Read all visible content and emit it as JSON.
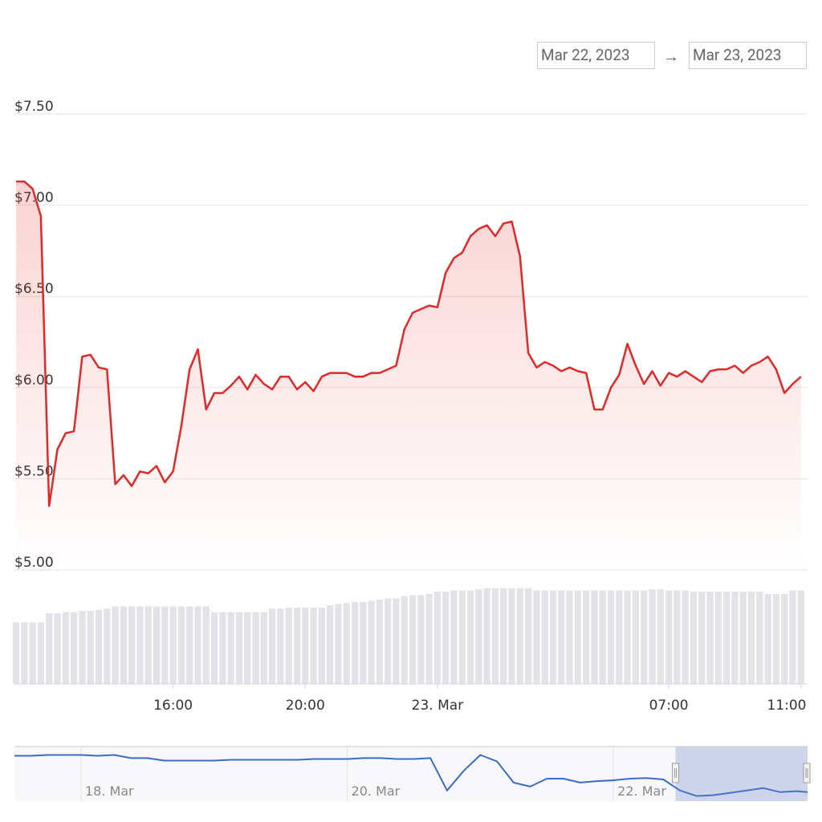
{
  "date_range": {
    "from": "Mar 22, 2023",
    "arrow": "→",
    "to": "Mar 23, 2023"
  },
  "chart_data": [
    {
      "type": "line",
      "x": [
        "2023-03-22T11:15",
        "2023-03-22T11:30",
        "2023-03-22T11:45",
        "2023-03-22T12:00",
        "2023-03-22T12:15",
        "2023-03-22T12:30",
        "2023-03-22T12:45",
        "2023-03-22T13:00",
        "2023-03-22T13:15",
        "2023-03-22T13:30",
        "2023-03-22T13:45",
        "2023-03-22T14:00",
        "2023-03-22T14:15",
        "2023-03-22T14:30",
        "2023-03-22T14:45",
        "2023-03-22T15:00",
        "2023-03-22T15:15",
        "2023-03-22T15:30",
        "2023-03-22T15:45",
        "2023-03-22T16:00",
        "2023-03-22T16:15",
        "2023-03-22T16:30",
        "2023-03-22T16:45",
        "2023-03-22T17:00",
        "2023-03-22T17:15",
        "2023-03-22T17:30",
        "2023-03-22T17:45",
        "2023-03-22T18:00",
        "2023-03-22T18:15",
        "2023-03-22T18:30",
        "2023-03-22T18:45",
        "2023-03-22T19:00",
        "2023-03-22T19:15",
        "2023-03-22T19:30",
        "2023-03-22T19:45",
        "2023-03-22T20:00",
        "2023-03-22T20:15",
        "2023-03-22T20:30",
        "2023-03-22T20:45",
        "2023-03-22T21:00",
        "2023-03-22T21:15",
        "2023-03-22T21:30",
        "2023-03-22T21:45",
        "2023-03-22T22:00",
        "2023-03-22T22:15",
        "2023-03-22T22:30",
        "2023-03-22T22:45",
        "2023-03-22T23:00",
        "2023-03-22T23:15",
        "2023-03-22T23:30",
        "2023-03-22T23:45",
        "2023-03-23T00:00",
        "2023-03-23T00:15",
        "2023-03-23T00:30",
        "2023-03-23T00:45",
        "2023-03-23T01:00",
        "2023-03-23T01:15",
        "2023-03-23T01:30",
        "2023-03-23T01:45",
        "2023-03-23T02:00",
        "2023-03-23T02:15",
        "2023-03-23T02:30",
        "2023-03-23T02:45",
        "2023-03-23T03:00",
        "2023-03-23T03:15",
        "2023-03-23T03:30",
        "2023-03-23T03:45",
        "2023-03-23T04:00",
        "2023-03-23T04:15",
        "2023-03-23T04:30",
        "2023-03-23T04:45",
        "2023-03-23T05:00",
        "2023-03-23T05:15",
        "2023-03-23T05:30",
        "2023-03-23T05:45",
        "2023-03-23T06:00",
        "2023-03-23T06:15",
        "2023-03-23T06:30",
        "2023-03-23T06:45",
        "2023-03-23T07:00",
        "2023-03-23T07:15",
        "2023-03-23T07:30",
        "2023-03-23T07:45",
        "2023-03-23T08:00",
        "2023-03-23T08:15",
        "2023-03-23T08:30",
        "2023-03-23T08:45",
        "2023-03-23T09:00",
        "2023-03-23T09:15",
        "2023-03-23T09:30",
        "2023-03-23T09:45",
        "2023-03-23T10:00",
        "2023-03-23T10:15",
        "2023-03-23T10:30",
        "2023-03-23T10:45",
        "2023-03-23T11:00"
      ],
      "series": [
        {
          "color": "#e02a2a",
          "values": [
            7.13,
            7.13,
            7.09,
            6.94,
            5.35,
            5.66,
            5.75,
            5.76,
            6.17,
            6.18,
            6.11,
            6.1,
            5.47,
            5.52,
            5.46,
            5.54,
            5.53,
            5.57,
            5.48,
            5.54,
            5.79,
            6.1,
            6.21,
            5.88,
            5.97,
            5.97,
            6.01,
            6.06,
            5.99,
            6.07,
            6.02,
            5.99,
            6.06,
            6.06,
            5.99,
            6.03,
            5.98,
            6.06,
            6.08,
            6.08,
            6.08,
            6.06,
            6.06,
            6.08,
            6.08,
            6.1,
            6.12,
            6.32,
            6.41,
            6.43,
            6.45,
            6.44,
            6.63,
            6.71,
            6.74,
            6.83,
            6.87,
            6.89,
            6.83,
            6.9,
            6.91,
            6.72,
            6.19,
            6.11,
            6.14,
            6.12,
            6.09,
            6.11,
            6.09,
            6.08,
            5.88,
            5.88,
            6.0,
            6.07,
            6.24,
            6.12,
            6.02,
            6.09,
            6.01,
            6.08,
            6.06,
            6.09,
            6.06,
            6.03,
            6.09,
            6.1,
            6.1,
            6.12,
            6.08,
            6.12,
            6.14,
            6.17,
            6.1,
            5.97,
            6.02,
            6.06
          ]
        },
        {
          "type": "bar",
          "axis": "y2",
          "color": "#e2e2e8",
          "values": [
            54,
            54,
            54,
            54,
            62,
            62,
            63,
            63,
            64,
            64,
            65,
            66,
            68,
            68,
            68,
            68,
            68,
            68,
            68,
            68,
            68,
            68,
            68,
            68,
            63,
            63,
            63,
            63,
            63,
            63,
            63,
            66,
            66,
            67,
            67,
            67,
            67,
            67,
            69,
            70,
            71,
            72,
            72,
            73,
            74,
            75,
            75,
            77,
            78,
            78,
            79,
            81,
            81,
            82,
            82,
            82,
            83,
            84,
            84,
            84,
            84,
            84,
            84,
            82,
            82,
            82,
            82,
            82,
            82,
            82,
            82,
            82,
            82,
            82,
            82,
            82,
            82,
            83,
            83,
            82,
            82,
            82,
            81,
            81,
            81,
            81,
            81,
            81,
            81,
            81,
            81,
            79,
            79,
            79,
            82,
            82
          ]
        }
      ],
      "xlim": [
        "2023-03-22T11:12",
        "2023-03-23T11:12"
      ],
      "xticks": [
        {
          "value": "2023-03-22T16:00",
          "label": "16:00"
        },
        {
          "value": "2023-03-22T20:00",
          "label": "20:00"
        },
        {
          "value": "2023-03-23T00:00",
          "label": "23. Mar"
        },
        {
          "value": "2023-03-23T07:00",
          "label": "07:00"
        },
        {
          "value": "2023-03-23T11:00",
          "label": "11:00"
        }
      ],
      "ylim": [
        5,
        7.5
      ],
      "yticks": [
        {
          "value": 5,
          "label": "$5.00"
        },
        {
          "value": 5.5,
          "label": "$5.50"
        },
        {
          "value": 6,
          "label": "$6.00"
        },
        {
          "value": 6.5,
          "label": "$6.50"
        },
        {
          "value": 7,
          "label": "$7.00"
        },
        {
          "value": 7.5,
          "label": "$7.50"
        }
      ],
      "y2lim": [
        0,
        100
      ],
      "grid": true
    },
    {
      "type": "line",
      "x": [
        "2023-03-17T12:00",
        "2023-03-17T15:00",
        "2023-03-17T18:00",
        "2023-03-17T21:00",
        "2023-03-18T00:00",
        "2023-03-18T03:00",
        "2023-03-18T06:00",
        "2023-03-18T09:00",
        "2023-03-18T12:00",
        "2023-03-18T15:00",
        "2023-03-18T18:00",
        "2023-03-18T21:00",
        "2023-03-19T00:00",
        "2023-03-19T03:00",
        "2023-03-19T06:00",
        "2023-03-19T09:00",
        "2023-03-19T12:00",
        "2023-03-19T15:00",
        "2023-03-19T18:00",
        "2023-03-19T21:00",
        "2023-03-20T00:00",
        "2023-03-20T03:00",
        "2023-03-20T06:00",
        "2023-03-20T09:00",
        "2023-03-20T12:00",
        "2023-03-20T15:00",
        "2023-03-20T18:00",
        "2023-03-20T21:00",
        "2023-03-21T00:00",
        "2023-03-21T03:00",
        "2023-03-21T06:00",
        "2023-03-21T09:00",
        "2023-03-21T12:00",
        "2023-03-21T15:00",
        "2023-03-21T18:00",
        "2023-03-21T21:00",
        "2023-03-22T00:00",
        "2023-03-22T03:00",
        "2023-03-22T06:00",
        "2023-03-22T09:00",
        "2023-03-22T12:00",
        "2023-03-22T15:00",
        "2023-03-22T18:00",
        "2023-03-22T21:00",
        "2023-03-23T00:00",
        "2023-03-23T03:00",
        "2023-03-23T06:00",
        "2023-03-23T09:00",
        "2023-03-23T11:00"
      ],
      "series": [
        {
          "color": "#3b6cc4",
          "values": [
            8.24,
            8.24,
            8.29,
            8.29,
            8.29,
            8.24,
            8.29,
            8.1,
            8.1,
            7.95,
            7.95,
            7.95,
            7.95,
            8.0,
            8.0,
            8.0,
            8.0,
            8.0,
            8.05,
            8.05,
            8.05,
            8.1,
            8.1,
            8.05,
            8.05,
            8.1,
            6.14,
            7.33,
            8.29,
            7.9,
            6.62,
            6.38,
            6.86,
            6.86,
            6.62,
            6.71,
            6.76,
            6.86,
            6.9,
            6.81,
            6.14,
            5.81,
            5.86,
            6.0,
            6.14,
            6.29,
            6.05,
            6.1,
            6.05
          ]
        }
      ],
      "xlim": [
        "2023-03-17T12:00",
        "2023-03-23T11:00"
      ],
      "ylim": [
        5.5,
        8.8
      ],
      "xticks": [
        {
          "value": "2023-03-18T00:00",
          "label": "18. Mar"
        },
        {
          "value": "2023-03-20T00:00",
          "label": "20. Mar"
        },
        {
          "value": "2023-03-22T00:00",
          "label": "22. Mar"
        }
      ]
    }
  ]
}
